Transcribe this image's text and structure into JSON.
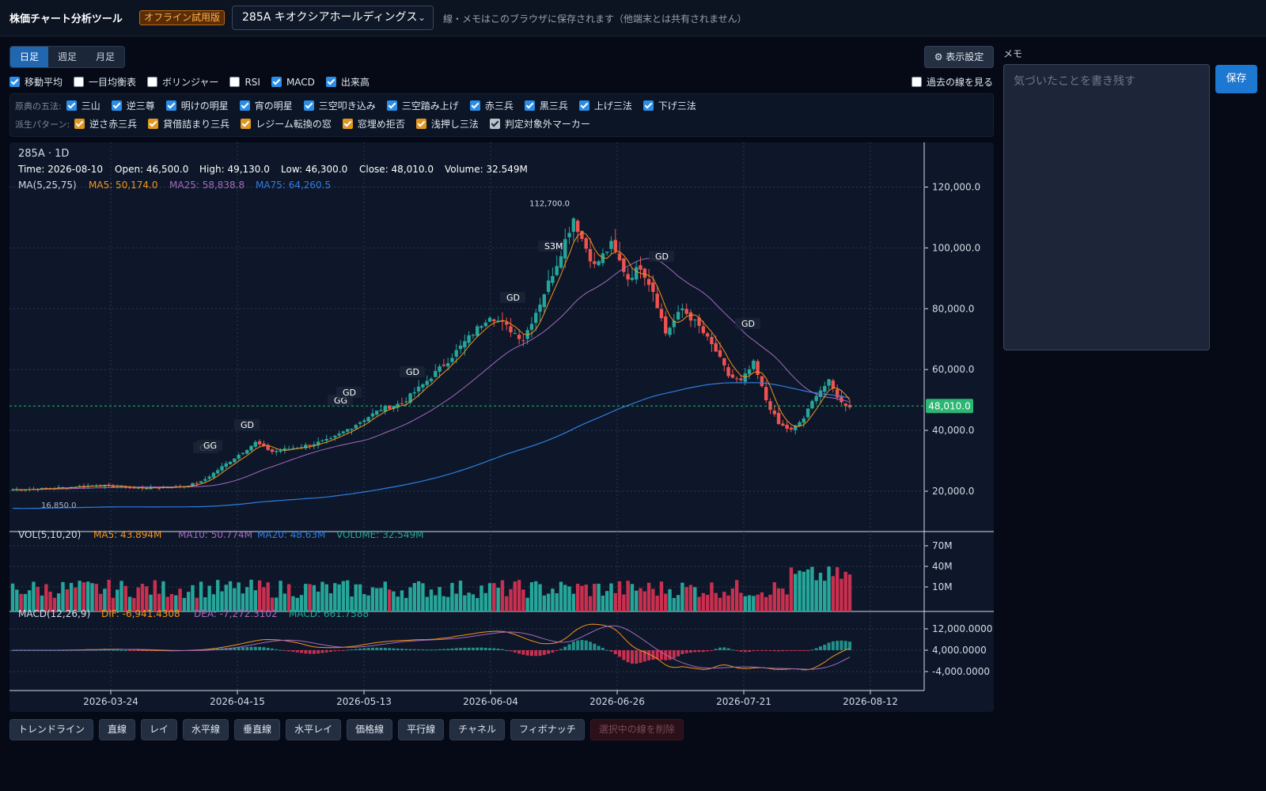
{
  "header": {
    "app_title": "株価チャート分析ツール",
    "badge": "オフライン試用版",
    "ticker": "285A キオクシアホールディングス",
    "note": "線・メモはこのブラウザに保存されます（他端末とは共有されません）"
  },
  "timeframes": [
    {
      "label": "日足",
      "active": true
    },
    {
      "label": "週足",
      "active": false
    },
    {
      "label": "月足",
      "active": false
    }
  ],
  "display_settings_label": "表示設定",
  "indicators": [
    {
      "label": "移動平均",
      "checked": true
    },
    {
      "label": "一目均衡表",
      "checked": false
    },
    {
      "label": "ボリンジャー",
      "checked": false
    },
    {
      "label": "RSI",
      "checked": false
    },
    {
      "label": "MACD",
      "checked": true
    },
    {
      "label": "出来高",
      "checked": true
    }
  ],
  "past_lines": {
    "label": "過去の線を見る",
    "checked": false
  },
  "patterns": {
    "classic_label": "原典の五法:",
    "classic": [
      {
        "label": "三山",
        "checked": true
      },
      {
        "label": "逆三尊",
        "checked": true
      },
      {
        "label": "明けの明星",
        "checked": true
      },
      {
        "label": "宵の明星",
        "checked": true
      },
      {
        "label": "三空叩き込み",
        "checked": true
      },
      {
        "label": "三空踏み上げ",
        "checked": true
      },
      {
        "label": "赤三兵",
        "checked": true
      },
      {
        "label": "黒三兵",
        "checked": true
      },
      {
        "label": "上げ三法",
        "checked": true
      },
      {
        "label": "下げ三法",
        "checked": true
      }
    ],
    "derived_label": "派生パターン:",
    "derived": [
      {
        "label": "逆さ赤三兵",
        "checked": true,
        "style": "orange"
      },
      {
        "label": "貸借詰まり三兵",
        "checked": true,
        "style": "orange"
      },
      {
        "label": "レジーム転換の窓",
        "checked": true,
        "style": "orange"
      },
      {
        "label": "窓埋め拒否",
        "checked": true,
        "style": "orange"
      },
      {
        "label": "浅押し三法",
        "checked": true,
        "style": "orange"
      },
      {
        "label": "判定対象外マーカー",
        "checked": true,
        "style": "gray"
      }
    ]
  },
  "chart": {
    "symbol_line": "285A · 1D",
    "ohlc": {
      "time": "Time: 2026-08-10",
      "open": "Open: 46,500.0",
      "high": "High: 49,130.0",
      "low": "Low: 46,300.0",
      "close": "Close: 48,010.0",
      "volume": "Volume: 32.549M"
    },
    "ma_legend": {
      "label": "MA(5,25,75)",
      "ma5": "MA5: 50,174.0",
      "ma25": "MA25: 58,838.8",
      "ma75": "MA75: 64,260.5"
    },
    "vol_legend": {
      "label": "VOL(5,10,20)",
      "ma5": "MA5: 43.894M",
      "ma10": "MA10: 50.774M",
      "ma20": "MA20: 48.63M",
      "volume": "VOLUME: 32.549M"
    },
    "macd_legend": {
      "label": "MACD(12,26,9)",
      "dif": "DIF: -6,941.4308",
      "dea": "DEA: -7,272.3102",
      "macd": "MACD: 661.7588"
    },
    "price_ticks": [
      "120,000.0",
      "100,000.0",
      "80,000.0",
      "60,000.0",
      "40,000.0",
      "20,000.0"
    ],
    "vol_ticks": [
      "70M",
      "40M",
      "10M"
    ],
    "macd_ticks": [
      "12,000.0000",
      "4,000.0000",
      "-4,000.0000"
    ],
    "date_ticks": [
      "2026-03-24",
      "2026-04-15",
      "2026-05-13",
      "2026-06-04",
      "2026-06-26",
      "2026-07-21",
      "2026-08-12"
    ],
    "last_price_label": "48,010.0",
    "high_label": "112,700.0",
    "low_label": "16,850.0",
    "markers": [
      "GG",
      "GG",
      "GD",
      "GG",
      "GD",
      "GD",
      "GD",
      "S3M",
      "GD",
      "GD"
    ],
    "colors": {
      "up": "#26a69a",
      "down": "#ef5350",
      "ma5": "#f7931a",
      "ma25": "#a569bd",
      "ma75": "#2f7de1",
      "last": "#2bb673"
    }
  },
  "chart_data": {
    "type": "candlestick",
    "ylim": [
      0,
      130000
    ],
    "x": [
      "2026-03-24",
      "2026-04-15",
      "2026-05-13",
      "2026-06-04",
      "2026-06-14",
      "2026-06-26",
      "2026-07-21",
      "2026-08-10"
    ],
    "close_approx": [
      21000,
      33000,
      47000,
      78000,
      112000,
      90000,
      57000,
      48010
    ],
    "ma_series": [
      {
        "name": "MA5",
        "last": 50174.0
      },
      {
        "name": "MA25",
        "last": 58838.8
      },
      {
        "name": "MA75",
        "last": 64260.5
      }
    ],
    "high": 112700.0,
    "low": 16850.0,
    "last_close": 48010.0
  },
  "memo": {
    "label": "メモ",
    "placeholder": "気づいたことを書き残す",
    "save_label": "保存"
  },
  "tools": [
    "トレンドライン",
    "直線",
    "レイ",
    "水平線",
    "垂直線",
    "水平レイ",
    "価格線",
    "平行線",
    "チャネル",
    "フィボナッチ",
    "選択中の線を削除"
  ]
}
